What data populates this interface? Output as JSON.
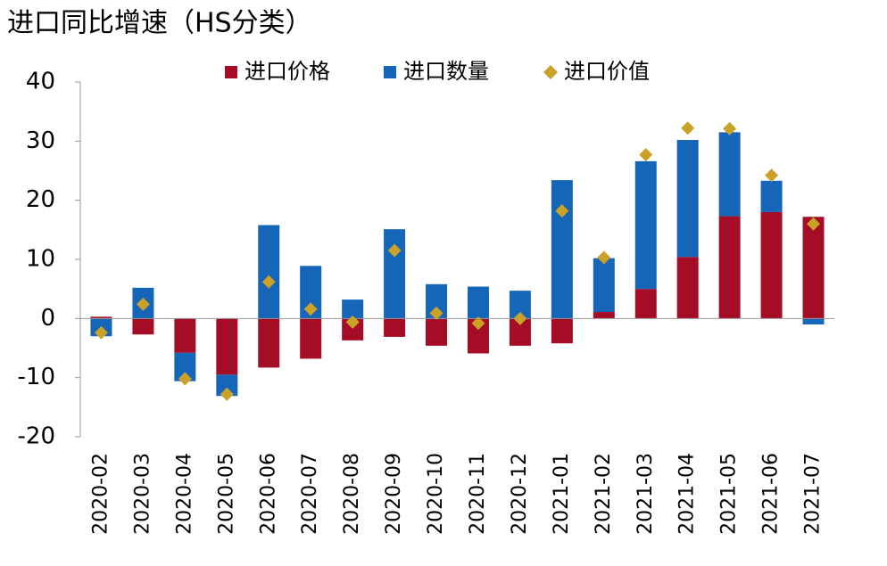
{
  "chart_data": {
    "type": "bar",
    "title": "进口同比增速（HS分类）",
    "categories": [
      "2020-02",
      "2020-03",
      "2020-04",
      "2020-05",
      "2020-06",
      "2020-07",
      "2020-08",
      "2020-09",
      "2020-10",
      "2020-11",
      "2020-12",
      "2021-01",
      "2021-02",
      "2021-03",
      "2021-04",
      "2021-05",
      "2021-06",
      "2021-07"
    ],
    "series": [
      {
        "name": "进口价格",
        "type": "bar",
        "color": "#a50c25",
        "values": [
          0.3,
          -2.7,
          -5.8,
          -9.5,
          -8.3,
          -6.8,
          -3.7,
          -3.1,
          -4.6,
          -5.9,
          -4.6,
          -4.2,
          1.1,
          5.0,
          10.4,
          17.3,
          18.0,
          17.2
        ]
      },
      {
        "name": "进口数量",
        "type": "bar",
        "color": "#1565b9",
        "values": [
          -3.0,
          5.2,
          -4.8,
          -3.6,
          15.8,
          8.9,
          3.2,
          15.1,
          5.8,
          5.4,
          4.7,
          23.4,
          9.1,
          21.6,
          19.8,
          14.2,
          5.3,
          -1.0
        ]
      },
      {
        "name": "进口价值",
        "type": "scatter",
        "color": "#c9a227",
        "values": [
          -2.4,
          2.4,
          -10.2,
          -12.8,
          6.2,
          1.6,
          -0.6,
          11.5,
          0.9,
          -0.8,
          0,
          18.2,
          10.3,
          27.7,
          32.2,
          32.1,
          24.2,
          16.0
        ]
      }
    ],
    "ylim": [
      -20,
      40
    ],
    "yticks": [
      -20,
      -10,
      0,
      10,
      20,
      30,
      40
    ],
    "grid": false,
    "legend": "top"
  }
}
